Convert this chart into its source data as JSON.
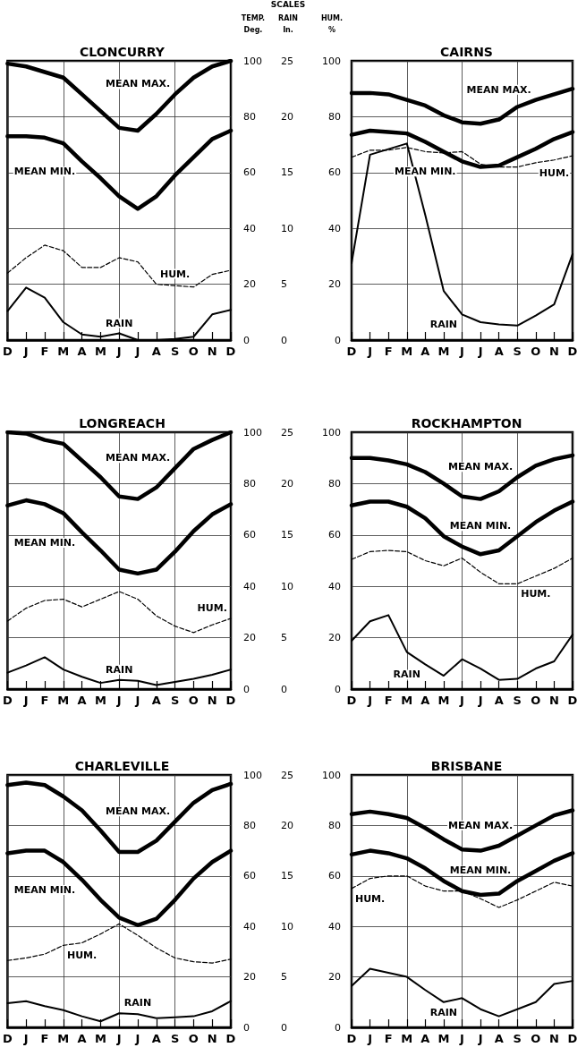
{
  "chart_data": [
    {
      "type": "line",
      "title": "CLONCURRY",
      "ylabel": "TEMP.\nDeg.",
      "y2label": "RAIN\nIn.",
      "annotations": [
        "SCALES"
      ],
      "categories": [
        "D",
        "J",
        "F",
        "M",
        "A",
        "M",
        "J",
        "J",
        "A",
        "S",
        "O",
        "N",
        "D"
      ],
      "ylim": [
        0,
        100
      ],
      "yticks": [
        0,
        20,
        40,
        60,
        80,
        100
      ],
      "y2lim": [
        0,
        25
      ],
      "y2ticks": [
        0,
        5,
        10,
        15,
        20,
        25
      ],
      "grid": true,
      "marker": "none",
      "series": [
        {
          "name": "MEAN MAX.",
          "color": "#000000",
          "line_style": "solid",
          "values": [
            99,
            98,
            96,
            94,
            88,
            82,
            76,
            75,
            81,
            88,
            94,
            98,
            100
          ]
        },
        {
          "name": "MEAN MIN.",
          "color": "#000000",
          "line_style": "solid",
          "values": [
            73,
            73,
            72.5,
            70.5,
            64,
            58,
            51.5,
            47,
            51.5,
            59,
            65.5,
            72,
            75
          ]
        },
        {
          "name": "HUM.",
          "color": "#000000",
          "line_style": "dashed",
          "values": [
            24,
            29.5,
            34,
            32,
            26,
            26,
            29.5,
            28,
            20,
            19.5,
            19,
            23.5,
            25
          ]
        },
        {
          "name": "RAIN",
          "color": "#000000",
          "line_style": "solid",
          "axis": "y2",
          "values": [
            2.6,
            4.7,
            3.8,
            1.6,
            0.5,
            0.3,
            0.6,
            0,
            0,
            0.1,
            0.3,
            2.3,
            2.7
          ]
        }
      ]
    },
    {
      "type": "line",
      "title": "CAIRNS",
      "ylabel": "HUM.\n%",
      "categories": [
        "D",
        "J",
        "F",
        "M",
        "A",
        "M",
        "J",
        "J",
        "A",
        "S",
        "O",
        "N",
        "D"
      ],
      "ylim": [
        0,
        100
      ],
      "yticks": [
        0,
        20,
        40,
        60,
        80,
        100
      ],
      "y2lim": [
        0,
        25
      ],
      "grid": true,
      "marker": "none",
      "series": [
        {
          "name": "MEAN MAX.",
          "color": "#000000",
          "line_style": "solid",
          "values": [
            88.5,
            88.5,
            88,
            86,
            84,
            80.5,
            78,
            77.5,
            79,
            83.5,
            86,
            88,
            90
          ]
        },
        {
          "name": "MEAN MIN.",
          "color": "#000000",
          "line_style": "solid",
          "values": [
            73.5,
            75,
            74.5,
            74,
            71,
            67.5,
            64,
            62,
            62.5,
            65.5,
            68.5,
            72,
            74.5
          ]
        },
        {
          "name": "HUM.",
          "color": "#000000",
          "line_style": "dashed",
          "values": [
            65.5,
            68,
            68,
            69,
            67.5,
            67,
            67.5,
            63,
            62,
            62,
            63.5,
            64.5,
            66
          ]
        },
        {
          "name": "RAIN",
          "color": "#000000",
          "line_style": "solid",
          "axis": "y2",
          "values": [
            6.9,
            16.6,
            17.1,
            17.6,
            11.2,
            4.4,
            2.3,
            1.6,
            1.4,
            1.3,
            2.2,
            3.2,
            7.7
          ]
        }
      ]
    },
    {
      "type": "line",
      "title": "LONGREACH",
      "categories": [
        "D",
        "J",
        "F",
        "M",
        "A",
        "M",
        "J",
        "J",
        "A",
        "S",
        "O",
        "N",
        "D"
      ],
      "ylim": [
        0,
        100
      ],
      "yticks": [
        0,
        20,
        40,
        60,
        80,
        100
      ],
      "y2lim": [
        0,
        25
      ],
      "y2ticks": [
        0,
        5,
        10,
        15,
        20,
        25
      ],
      "grid": true,
      "marker": "none",
      "series": [
        {
          "name": "MEAN MAX.",
          "color": "#000000",
          "line_style": "solid",
          "values": [
            100,
            99.5,
            97,
            95.5,
            89,
            82.5,
            75,
            74,
            78.5,
            86,
            93.5,
            97,
            100
          ]
        },
        {
          "name": "MEAN MIN.",
          "color": "#000000",
          "line_style": "solid",
          "values": [
            71.5,
            73.5,
            72,
            68.5,
            61,
            54,
            46.5,
            45,
            46.5,
            53.5,
            61.5,
            68,
            72
          ]
        },
        {
          "name": "HUM.",
          "color": "#000000",
          "line_style": "dashed",
          "values": [
            26.5,
            31.5,
            34.5,
            35,
            32,
            35,
            38,
            35,
            28.5,
            24.5,
            22,
            25,
            27.5
          ]
        },
        {
          "name": "RAIN",
          "color": "#000000",
          "line_style": "solid",
          "axis": "y2",
          "values": [
            1.6,
            2.3,
            3.1,
            1.9,
            1.2,
            0.6,
            0.9,
            0.8,
            0.4,
            0.7,
            1,
            1.4,
            1.9
          ]
        }
      ]
    },
    {
      "type": "line",
      "title": "ROCKHAMPTON",
      "categories": [
        "D",
        "J",
        "F",
        "M",
        "A",
        "M",
        "J",
        "J",
        "A",
        "S",
        "O",
        "N",
        "D"
      ],
      "ylim": [
        0,
        100
      ],
      "yticks": [
        0,
        20,
        40,
        60,
        80,
        100
      ],
      "y2lim": [
        0,
        25
      ],
      "grid": true,
      "marker": "none",
      "series": [
        {
          "name": "MEAN MAX.",
          "color": "#000000",
          "line_style": "solid",
          "values": [
            90,
            90,
            89,
            87.5,
            84.5,
            80,
            75,
            74,
            77,
            82.5,
            87,
            89.5,
            91
          ]
        },
        {
          "name": "MEAN MIN.",
          "color": "#000000",
          "line_style": "solid",
          "values": [
            71.5,
            73,
            73,
            71,
            66.5,
            59.5,
            55.5,
            52.5,
            54,
            59.5,
            65,
            69.5,
            73
          ]
        },
        {
          "name": "HUM.",
          "color": "#000000",
          "line_style": "dashed",
          "values": [
            50.5,
            53.5,
            54,
            53.5,
            50,
            48,
            51,
            45.5,
            41,
            41,
            44,
            47,
            51
          ]
        },
        {
          "name": "RAIN",
          "color": "#000000",
          "line_style": "solid",
          "axis": "y2",
          "values": [
            4.7,
            6.6,
            7.2,
            3.6,
            2.4,
            1.3,
            2.9,
            2,
            0.9,
            1,
            2,
            2.7,
            5.3
          ]
        }
      ]
    },
    {
      "type": "line",
      "title": "CHARLEVILLE",
      "categories": [
        "D",
        "J",
        "F",
        "M",
        "A",
        "M",
        "J",
        "J",
        "A",
        "S",
        "O",
        "N",
        "D"
      ],
      "ylim": [
        0,
        100
      ],
      "yticks": [
        0,
        20,
        40,
        60,
        80,
        100
      ],
      "y2lim": [
        0,
        25
      ],
      "y2ticks": [
        0,
        5,
        10,
        15,
        20,
        25
      ],
      "grid": true,
      "marker": "none",
      "series": [
        {
          "name": "MEAN MAX.",
          "color": "#000000",
          "line_style": "solid",
          "values": [
            96,
            97,
            96,
            91.5,
            86,
            78,
            69.5,
            69.5,
            74,
            81.5,
            89,
            94,
            96.5
          ]
        },
        {
          "name": "MEAN MIN.",
          "color": "#000000",
          "line_style": "solid",
          "values": [
            69,
            70,
            70,
            65.5,
            58.5,
            50.5,
            43.5,
            40.5,
            43,
            50.5,
            59,
            65.5,
            70
          ]
        },
        {
          "name": "HUM.",
          "color": "#000000",
          "line_style": "dashed",
          "values": [
            26.5,
            27.5,
            29,
            32.5,
            33.5,
            37,
            41,
            36.5,
            31.5,
            27.5,
            26,
            25.5,
            27
          ]
        },
        {
          "name": "RAIN",
          "color": "#000000",
          "line_style": "solid",
          "axis": "y2",
          "values": [
            2.4,
            2.6,
            2.1,
            1.7,
            1.1,
            0.6,
            1.4,
            1.3,
            0.9,
            1,
            1.1,
            1.6,
            2.6
          ]
        }
      ]
    },
    {
      "type": "line",
      "title": "BRISBANE",
      "categories": [
        "D",
        "J",
        "F",
        "M",
        "A",
        "M",
        "J",
        "J",
        "A",
        "S",
        "O",
        "N",
        "D"
      ],
      "ylim": [
        0,
        100
      ],
      "yticks": [
        0,
        20,
        40,
        60,
        80,
        100
      ],
      "y2lim": [
        0,
        25
      ],
      "grid": true,
      "marker": "none",
      "series": [
        {
          "name": "MEAN MAX.",
          "color": "#000000",
          "line_style": "solid",
          "values": [
            84.5,
            85.5,
            84.5,
            83,
            79,
            74.5,
            70.5,
            70,
            72,
            76,
            80,
            84,
            86
          ]
        },
        {
          "name": "MEAN MIN.",
          "color": "#000000",
          "line_style": "solid",
          "values": [
            68.5,
            70,
            69,
            67,
            63,
            58,
            54,
            52.5,
            53,
            58,
            62,
            66,
            69
          ]
        },
        {
          "name": "HUM.",
          "color": "#000000",
          "line_style": "dashed",
          "values": [
            55,
            59,
            60,
            60,
            56,
            54,
            54,
            51,
            47.5,
            50.5,
            54,
            57.5,
            56
          ]
        },
        {
          "name": "RAIN",
          "color": "#000000",
          "line_style": "solid",
          "axis": "y2",
          "values": [
            4.1,
            5.8,
            5.4,
            5,
            3.7,
            2.5,
            2.9,
            1.8,
            1.1,
            1.8,
            2.5,
            4.3,
            4.6
          ]
        }
      ]
    }
  ]
}
